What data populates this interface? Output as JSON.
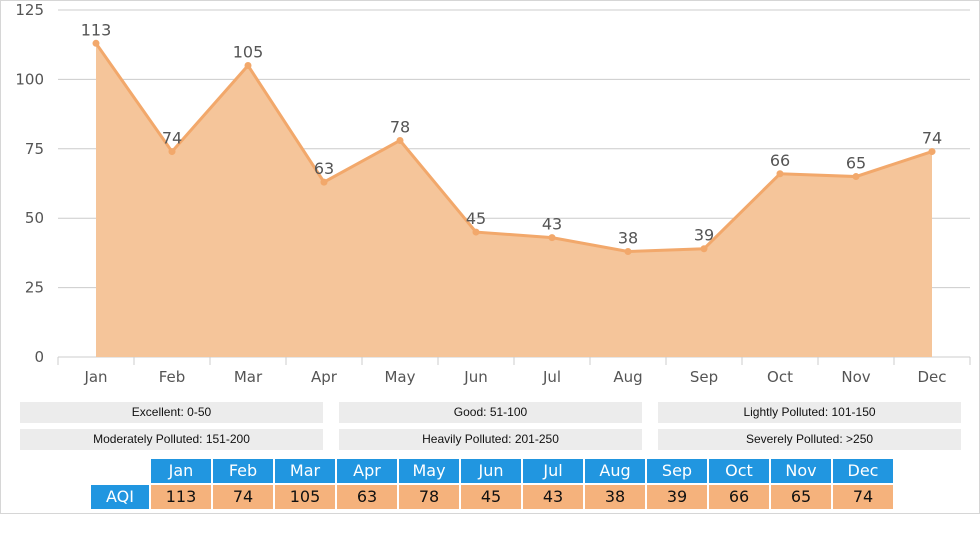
{
  "chart_data": {
    "type": "area",
    "categories": [
      "Jan",
      "Feb",
      "Mar",
      "Apr",
      "May",
      "Jun",
      "Jul",
      "Aug",
      "Sep",
      "Oct",
      "Nov",
      "Dec"
    ],
    "values": [
      113,
      74,
      105,
      63,
      78,
      45,
      43,
      38,
      39,
      66,
      65,
      74
    ],
    "yticks": [
      "0",
      "25",
      "50",
      "75",
      "100",
      "125"
    ],
    "ylim": [
      0,
      125
    ],
    "grid": true,
    "fill_color": "#f5c59a",
    "line_color": "#f2a86b",
    "title": "",
    "xlabel": "",
    "ylabel": ""
  },
  "legend": {
    "items": [
      "Excellent: 0-50",
      "Good: 51-100",
      "Lightly Polluted: 101-150",
      "Moderately Polluted: 151-200",
      "Heavily Polluted: 201-250",
      "Severely Polluted: >250"
    ]
  },
  "table": {
    "row_label": "AQI",
    "months": [
      "Jan",
      "Feb",
      "Mar",
      "Apr",
      "May",
      "Jun",
      "Jul",
      "Aug",
      "Sep",
      "Oct",
      "Nov",
      "Dec"
    ],
    "values": [
      "113",
      "74",
      "105",
      "63",
      "78",
      "45",
      "43",
      "38",
      "39",
      "66",
      "65",
      "74"
    ],
    "header_color": "#2196e0",
    "value_color": "#f5b27c"
  }
}
